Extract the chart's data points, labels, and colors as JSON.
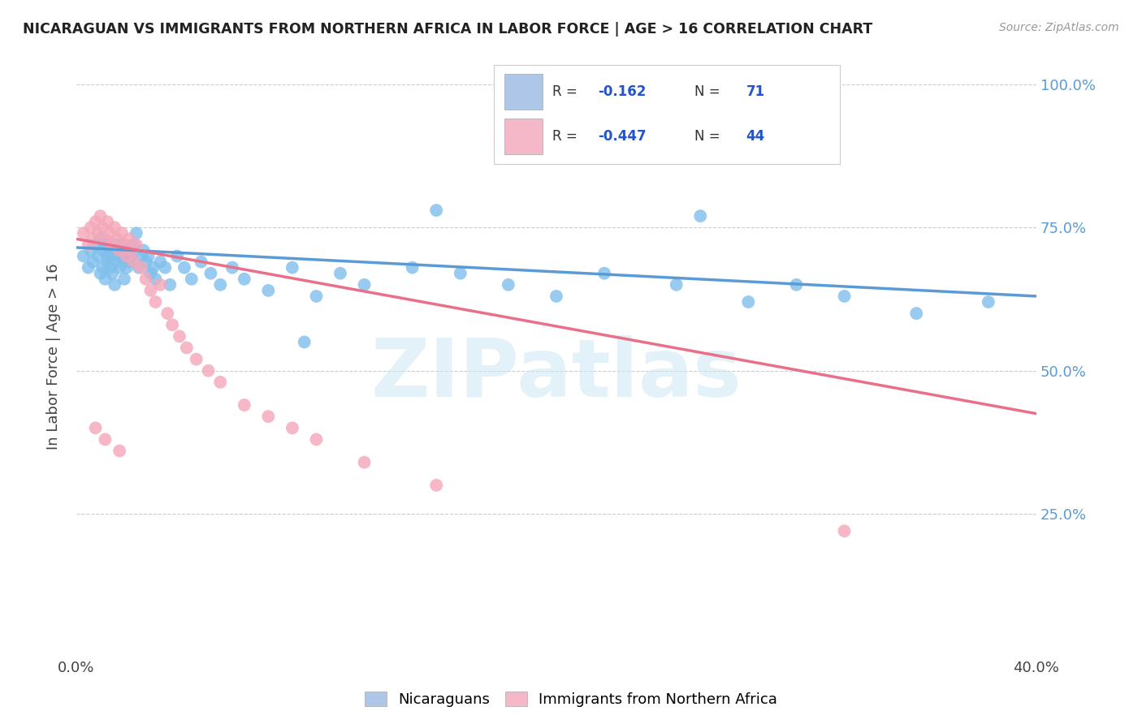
{
  "title": "NICARAGUAN VS IMMIGRANTS FROM NORTHERN AFRICA IN LABOR FORCE | AGE > 16 CORRELATION CHART",
  "source": "Source: ZipAtlas.com",
  "ylabel": "In Labor Force | Age > 16",
  "xlim": [
    0.0,
    0.4
  ],
  "ylim": [
    0.0,
    1.05
  ],
  "yticks": [
    0.0,
    0.25,
    0.5,
    0.75,
    1.0
  ],
  "ytick_labels": [
    "",
    "25.0%",
    "50.0%",
    "75.0%",
    "100.0%"
  ],
  "xticks": [
    0.0,
    0.1,
    0.2,
    0.3,
    0.4
  ],
  "xtick_labels": [
    "0.0%",
    "",
    "",
    "",
    "40.0%"
  ],
  "background_color": "#ffffff",
  "watermark": "ZIPatlas",
  "blue_color": "#7fbfec",
  "pink_color": "#f4a7b9",
  "trend_blue": "#5b9bd5",
  "trend_pink": "#e8708a",
  "R_blue": -0.162,
  "N_blue": 71,
  "R_pink": -0.447,
  "N_pink": 44,
  "blue_scatter_x": [
    0.003,
    0.005,
    0.006,
    0.007,
    0.008,
    0.009,
    0.01,
    0.01,
    0.011,
    0.011,
    0.012,
    0.012,
    0.013,
    0.013,
    0.014,
    0.014,
    0.015,
    0.015,
    0.016,
    0.016,
    0.017,
    0.017,
    0.018,
    0.018,
    0.019,
    0.02,
    0.02,
    0.021,
    0.022,
    0.022,
    0.023,
    0.024,
    0.025,
    0.026,
    0.027,
    0.028,
    0.029,
    0.03,
    0.031,
    0.032,
    0.033,
    0.035,
    0.037,
    0.039,
    0.042,
    0.045,
    0.048,
    0.052,
    0.056,
    0.06,
    0.065,
    0.07,
    0.08,
    0.09,
    0.1,
    0.11,
    0.12,
    0.14,
    0.16,
    0.18,
    0.2,
    0.22,
    0.25,
    0.28,
    0.3,
    0.32,
    0.35,
    0.38,
    0.15,
    0.26,
    0.095
  ],
  "blue_scatter_y": [
    0.7,
    0.68,
    0.71,
    0.69,
    0.72,
    0.7,
    0.73,
    0.67,
    0.71,
    0.68,
    0.72,
    0.66,
    0.7,
    0.69,
    0.68,
    0.71,
    0.67,
    0.7,
    0.65,
    0.72,
    0.69,
    0.71,
    0.68,
    0.7,
    0.72,
    0.66,
    0.7,
    0.68,
    0.71,
    0.69,
    0.7,
    0.72,
    0.74,
    0.68,
    0.7,
    0.71,
    0.69,
    0.7,
    0.67,
    0.68,
    0.66,
    0.69,
    0.68,
    0.65,
    0.7,
    0.68,
    0.66,
    0.69,
    0.67,
    0.65,
    0.68,
    0.66,
    0.64,
    0.68,
    0.63,
    0.67,
    0.65,
    0.68,
    0.67,
    0.65,
    0.63,
    0.67,
    0.65,
    0.62,
    0.65,
    0.63,
    0.6,
    0.62,
    0.78,
    0.77,
    0.55
  ],
  "pink_scatter_x": [
    0.003,
    0.005,
    0.006,
    0.007,
    0.008,
    0.009,
    0.01,
    0.011,
    0.012,
    0.013,
    0.014,
    0.015,
    0.016,
    0.017,
    0.018,
    0.019,
    0.02,
    0.021,
    0.022,
    0.023,
    0.024,
    0.025,
    0.027,
    0.029,
    0.031,
    0.033,
    0.035,
    0.038,
    0.04,
    0.043,
    0.046,
    0.05,
    0.055,
    0.06,
    0.07,
    0.08,
    0.09,
    0.1,
    0.12,
    0.15,
    0.008,
    0.012,
    0.018,
    0.32
  ],
  "pink_scatter_y": [
    0.74,
    0.72,
    0.75,
    0.73,
    0.76,
    0.74,
    0.77,
    0.75,
    0.73,
    0.76,
    0.74,
    0.72,
    0.75,
    0.73,
    0.71,
    0.74,
    0.72,
    0.7,
    0.73,
    0.71,
    0.69,
    0.72,
    0.68,
    0.66,
    0.64,
    0.62,
    0.65,
    0.6,
    0.58,
    0.56,
    0.54,
    0.52,
    0.5,
    0.48,
    0.44,
    0.42,
    0.4,
    0.38,
    0.34,
    0.3,
    0.4,
    0.38,
    0.36,
    0.22
  ],
  "blue_trend_x": [
    0.0,
    0.4
  ],
  "blue_trend_y": [
    0.715,
    0.63
  ],
  "pink_trend_x": [
    0.0,
    0.4
  ],
  "pink_trend_y": [
    0.73,
    0.425
  ]
}
